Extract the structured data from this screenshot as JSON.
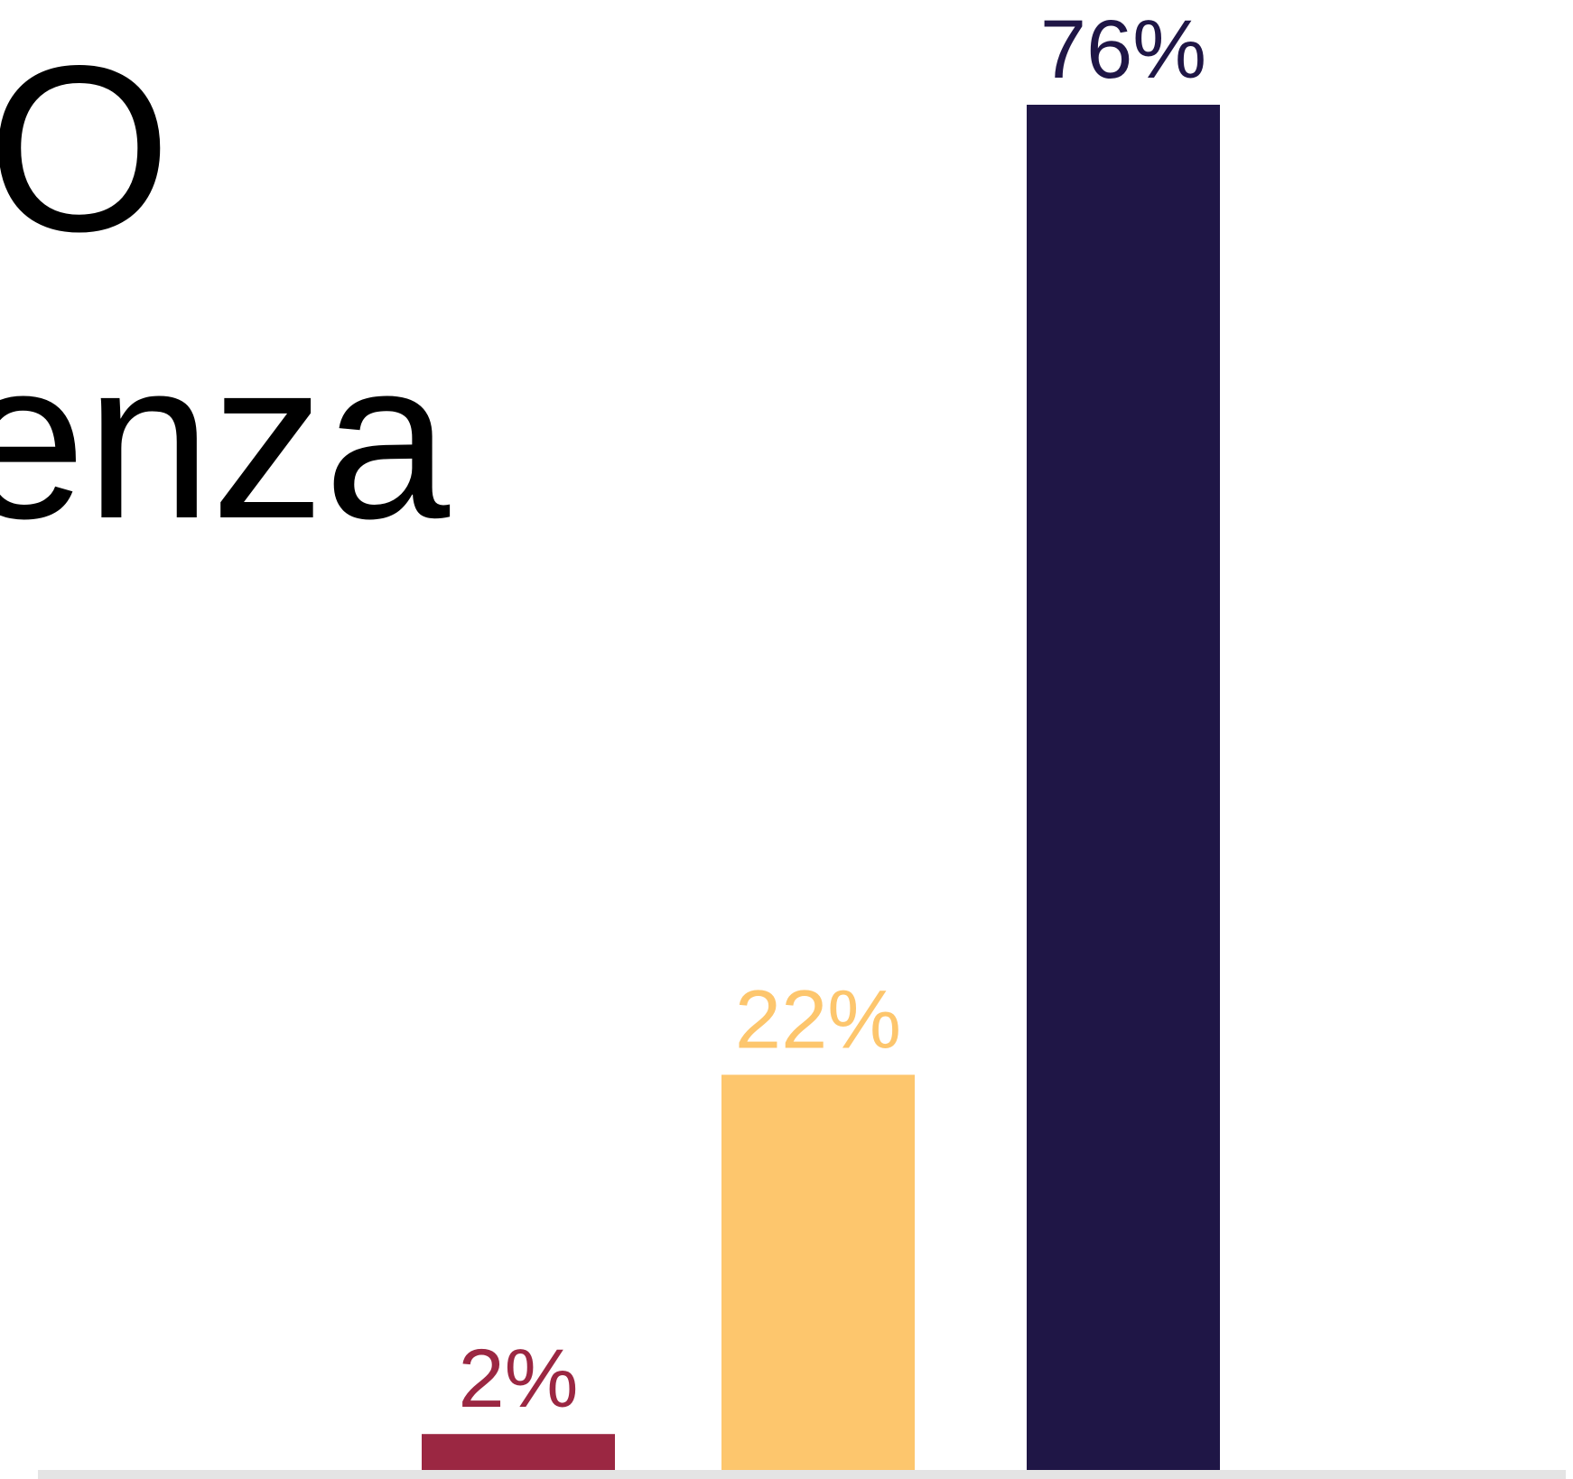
{
  "chart_data": {
    "type": "bar",
    "annotations": [
      "O",
      "enza"
    ],
    "categories": [
      null,
      null,
      null
    ],
    "values": [
      2,
      22,
      76
    ],
    "value_labels": [
      "2%",
      "22%",
      "76%"
    ],
    "colors": [
      "#9b2742",
      "#fdc66d",
      "#1f1646"
    ]
  }
}
